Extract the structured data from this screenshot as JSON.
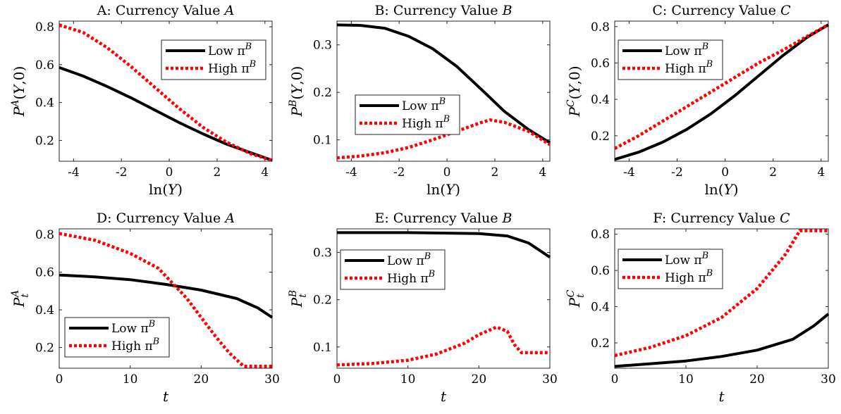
{
  "colors": {
    "low": "#000000",
    "high": "#ff0000"
  },
  "legend_labels": [
    "Low π",
    "High π"
  ],
  "chart_data": [
    {
      "id": "A",
      "type": "line",
      "title": "A: Currency Value A",
      "ylabel": "P^A(Y,0)",
      "xlabel": "ln(Y)",
      "xlim": [
        -4.6,
        4.3
      ],
      "ylim": [
        0.09,
        0.83
      ],
      "xticks": [
        "-4",
        "-2",
        "0",
        "2",
        "4"
      ],
      "yticks": [
        "0.2",
        "0.4",
        "0.6",
        "0.8"
      ],
      "legend": "top-right",
      "series": [
        {
          "name": "Low π^B",
          "style": "solid",
          "x": [
            -4.6,
            -3.6,
            -2.6,
            -1.6,
            -0.6,
            0.4,
            1.4,
            2.4,
            3.4,
            4.3
          ],
          "y": [
            0.585,
            0.54,
            0.485,
            0.425,
            0.36,
            0.295,
            0.235,
            0.18,
            0.135,
            0.095
          ]
        },
        {
          "name": "High π^B",
          "style": "dotted",
          "x": [
            -4.6,
            -3.6,
            -2.6,
            -1.6,
            -0.6,
            0.4,
            1.4,
            2.4,
            3.4,
            4.3
          ],
          "y": [
            0.81,
            0.77,
            0.69,
            0.59,
            0.48,
            0.37,
            0.27,
            0.19,
            0.13,
            0.095
          ]
        }
      ]
    },
    {
      "id": "B",
      "type": "line",
      "title": "B: Currency Value B",
      "ylabel": "P^B(Y,0)",
      "xlabel": "ln(Y)",
      "xlim": [
        -4.6,
        4.3
      ],
      "ylim": [
        0.055,
        0.35
      ],
      "xticks": [
        "-4",
        "-2",
        "0",
        "2",
        "4"
      ],
      "yticks": [
        "0.1",
        "0.2",
        "0.3"
      ],
      "legend": "center-left",
      "series": [
        {
          "name": "Low π^B",
          "style": "solid",
          "x": [
            -4.6,
            -3.6,
            -2.6,
            -1.6,
            -0.6,
            0.4,
            1.4,
            2.4,
            3.4,
            4.3
          ],
          "y": [
            0.342,
            0.341,
            0.335,
            0.318,
            0.292,
            0.255,
            0.208,
            0.16,
            0.122,
            0.094
          ]
        },
        {
          "name": "High π^B",
          "style": "dotted",
          "x": [
            -4.6,
            -3.6,
            -2.6,
            -1.6,
            -0.6,
            0.4,
            1.4,
            1.8,
            2.4,
            3.4,
            4.3
          ],
          "y": [
            0.062,
            0.066,
            0.073,
            0.084,
            0.1,
            0.118,
            0.136,
            0.142,
            0.137,
            0.118,
            0.09
          ]
        }
      ]
    },
    {
      "id": "C",
      "type": "line",
      "title": "C: Currency Value C",
      "ylabel": "P^C(Y,0)",
      "xlabel": "ln(Y)",
      "xlim": [
        -4.6,
        4.3
      ],
      "ylim": [
        0.06,
        0.83
      ],
      "xticks": [
        "-4",
        "-2",
        "0",
        "2",
        "4"
      ],
      "yticks": [
        "0.2",
        "0.4",
        "0.6",
        "0.8"
      ],
      "legend": "top-left",
      "series": [
        {
          "name": "Low π^B",
          "style": "solid",
          "x": [
            -4.6,
            -3.6,
            -2.6,
            -1.6,
            -0.6,
            0.4,
            1.4,
            2.4,
            3.4,
            4.3
          ],
          "y": [
            0.07,
            0.11,
            0.165,
            0.235,
            0.32,
            0.42,
            0.53,
            0.64,
            0.74,
            0.81
          ]
        },
        {
          "name": "High π^B",
          "style": "dotted",
          "x": [
            -4.6,
            -3.6,
            -2.6,
            -1.6,
            -0.6,
            0.4,
            1.4,
            2.4,
            3.4,
            4.3
          ],
          "y": [
            0.13,
            0.2,
            0.28,
            0.36,
            0.44,
            0.52,
            0.6,
            0.67,
            0.745,
            0.81
          ]
        }
      ]
    },
    {
      "id": "D",
      "type": "line",
      "title": "D: Currency Value A",
      "ylabel": "P_t^A",
      "xlabel": "t",
      "xlim": [
        0,
        30
      ],
      "ylim": [
        0.09,
        0.83
      ],
      "xticks": [
        "0",
        "10",
        "20",
        "30"
      ],
      "yticks": [
        "0.2",
        "0.4",
        "0.6",
        "0.8"
      ],
      "legend": "bottom-left",
      "series": [
        {
          "name": "Low π^B",
          "style": "solid",
          "x": [
            0,
            5,
            10,
            15,
            20,
            25,
            28,
            30
          ],
          "y": [
            0.585,
            0.575,
            0.56,
            0.535,
            0.505,
            0.46,
            0.41,
            0.36
          ]
        },
        {
          "name": "High π^B",
          "style": "dotted",
          "x": [
            0,
            5,
            10,
            14,
            18,
            20,
            22,
            24,
            26,
            30
          ],
          "y": [
            0.805,
            0.77,
            0.7,
            0.62,
            0.46,
            0.36,
            0.26,
            0.17,
            0.1,
            0.1
          ]
        }
      ]
    },
    {
      "id": "E",
      "type": "line",
      "title": "E: Currency Value B",
      "ylabel": "P_t^B",
      "xlabel": "t",
      "xlim": [
        0,
        30
      ],
      "ylim": [
        0.055,
        0.35
      ],
      "xticks": [
        "0",
        "10",
        "20",
        "30"
      ],
      "yticks": [
        "0.1",
        "0.2",
        "0.3"
      ],
      "legend": "top-left",
      "series": [
        {
          "name": "Low π^B",
          "style": "solid",
          "x": [
            0,
            10,
            20,
            24,
            27,
            30
          ],
          "y": [
            0.342,
            0.342,
            0.34,
            0.335,
            0.32,
            0.29
          ]
        },
        {
          "name": "High π^B",
          "style": "dotted",
          "x": [
            0,
            5,
            10,
            14,
            18,
            20,
            22.5,
            24,
            25,
            26,
            30
          ],
          "y": [
            0.062,
            0.065,
            0.072,
            0.085,
            0.108,
            0.126,
            0.142,
            0.133,
            0.105,
            0.088,
            0.088
          ]
        }
      ]
    },
    {
      "id": "F",
      "type": "line",
      "title": "F: Currency Value C",
      "ylabel": "P_t^C",
      "xlabel": "t",
      "xlim": [
        0,
        30
      ],
      "ylim": [
        0.06,
        0.83
      ],
      "xticks": [
        "0",
        "10",
        "20",
        "30"
      ],
      "yticks": [
        "0.2",
        "0.4",
        "0.6",
        "0.8"
      ],
      "legend": "top-left",
      "series": [
        {
          "name": "Low π^B",
          "style": "solid",
          "x": [
            0,
            5,
            10,
            15,
            20,
            25,
            28,
            30
          ],
          "y": [
            0.07,
            0.085,
            0.1,
            0.125,
            0.16,
            0.22,
            0.295,
            0.36
          ]
        },
        {
          "name": "High π^B",
          "style": "dotted",
          "x": [
            0,
            5,
            10,
            15,
            20,
            24,
            26,
            30
          ],
          "y": [
            0.13,
            0.175,
            0.24,
            0.34,
            0.5,
            0.69,
            0.82,
            0.82
          ]
        }
      ]
    }
  ]
}
